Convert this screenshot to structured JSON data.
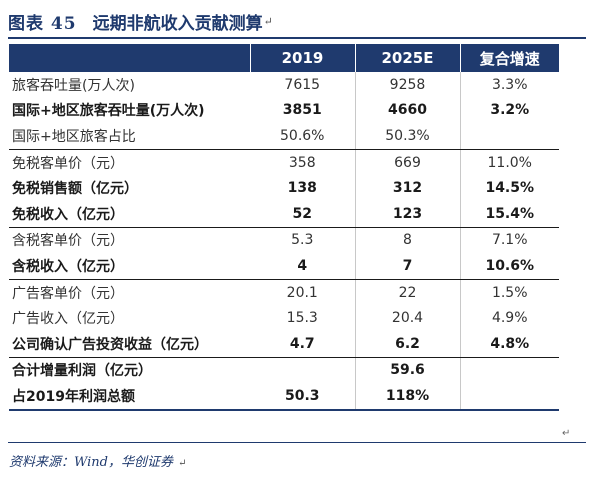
{
  "figure": {
    "number": "图表 45",
    "title": "远期非航收入贡献测算",
    "return_mark": "↵"
  },
  "table": {
    "headers": [
      "",
      "2019",
      "2025E",
      "复合增速"
    ],
    "rows": [
      {
        "label": "旅客吞吐量(万人次)",
        "v2019": "7615",
        "v2025": "9258",
        "cagr": "3.3%"
      },
      {
        "label": "国际+地区旅客吞吐量(万人次)",
        "v2019": "3851",
        "v2025": "4660",
        "cagr": "3.2%"
      },
      {
        "label": "国际+地区旅客占比",
        "v2019": "50.6%",
        "v2025": "50.3%",
        "cagr": ""
      },
      {
        "label": "免税客单价（元）",
        "v2019": "358",
        "v2025": "669",
        "cagr": "11.0%"
      },
      {
        "label": "免税销售额（亿元）",
        "v2019": "138",
        "v2025": "312",
        "cagr": "14.5%"
      },
      {
        "label": "免税收入（亿元）",
        "v2019": "52",
        "v2025": "123",
        "cagr": "15.4%"
      },
      {
        "label": "含税客单价（元）",
        "v2019": "5.3",
        "v2025": "8",
        "cagr": "7.1%"
      },
      {
        "label": "含税收入（亿元）",
        "v2019": "4",
        "v2025": "7",
        "cagr": "10.6%"
      },
      {
        "label": "广告客单价（元）",
        "v2019": "20.1",
        "v2025": "22",
        "cagr": "1.5%"
      },
      {
        "label": "广告收入（亿元）",
        "v2019": "15.3",
        "v2025": "20.4",
        "cagr": "4.9%"
      },
      {
        "label": "公司确认广告投资收益（亿元）",
        "v2019": "4.7",
        "v2025": "6.2",
        "cagr": "4.8%"
      },
      {
        "label": "合计增量利润（亿元）",
        "v2019": "",
        "v2025": "59.6",
        "cagr": ""
      },
      {
        "label": "占2019年利润总额",
        "v2019": "50.3",
        "v2025": "118%",
        "cagr": ""
      }
    ],
    "trailing_mark": "↵"
  },
  "source": {
    "text": "资料来源：Wind，华创证券",
    "return_mark": "↵"
  },
  "colors": {
    "header_bg": "#1f3a6e",
    "header_text": "#ffffff",
    "title_text": "#1f3a6e"
  }
}
